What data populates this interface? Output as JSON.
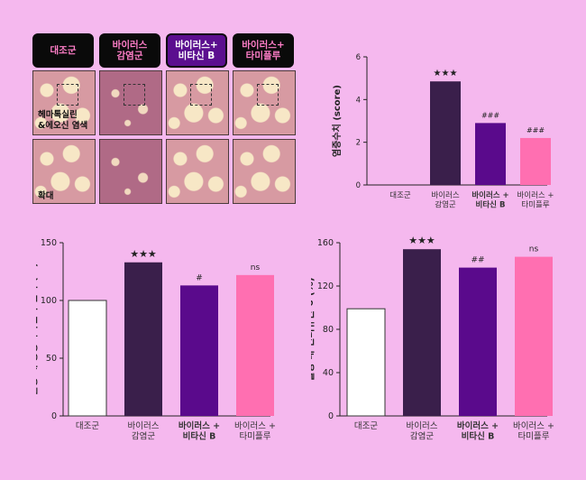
{
  "tabs": [
    {
      "label": "대조군",
      "bg": "#0a0a0a",
      "fg": "#ff7ec8"
    },
    {
      "label": "바이러스\n감염군",
      "bg": "#0a0a0a",
      "fg": "#ff7ec8"
    },
    {
      "label": "바이러스+\n비타신 B",
      "bg": "#5b0e8f",
      "fg": "#ffffff"
    },
    {
      "label": "바이러스+\n타미플루",
      "bg": "#0a0a0a",
      "fg": "#ff7ec8"
    }
  ],
  "histology": {
    "row1_label": "헤마톡실린\n&에오신 염색",
    "row2_label": "확대"
  },
  "colors": {
    "control": "#ffffff",
    "virus": "#3a1f4b",
    "vitacin": "#5a0a8c",
    "tamiflu": "#ff6fb1"
  },
  "chart_data": [
    {
      "type": "bar",
      "categories": [
        "대조군",
        "바이러스\n감염군",
        "바이러스 +\n비타신 B",
        "바이러스 +\n타미플루"
      ],
      "values": [
        0,
        4.85,
        2.9,
        2.2
      ],
      "annotations": [
        "",
        "★★★",
        "###",
        "###"
      ],
      "xlabel": "",
      "ylabel": "염증수치 (score)",
      "ylim": [
        0,
        6
      ],
      "yticks": [
        0,
        2,
        4,
        6
      ],
      "grid": false
    },
    {
      "type": "bar",
      "categories": [
        "대조군",
        "바이러스\n감염군",
        "바이러스 +\n비타신 B",
        "바이러스 +\n타미플루"
      ],
      "values": [
        100,
        133,
        113,
        122
      ],
      "annotations": [
        "",
        "★★★",
        "#",
        "ns"
      ],
      "xlabel": "",
      "ylabel": "혈청 내 종양괴사인자 알파 (%)",
      "ylim": [
        0,
        150
      ],
      "yticks": [
        0,
        50,
        100,
        150
      ],
      "grid": false
    },
    {
      "type": "bar",
      "categories": [
        "대조군",
        "바이러스\n감염군",
        "바이러스 +\n비타신 B",
        "바이러스 +\n타미플루"
      ],
      "values": [
        99,
        154,
        137,
        147
      ],
      "annotations": [
        "",
        "★★★",
        "##",
        "ns"
      ],
      "xlabel": "",
      "ylabel": "혈청 내 인터류킨-6 (%)",
      "ylim": [
        0,
        160
      ],
      "yticks": [
        0,
        40,
        80,
        120,
        160
      ],
      "grid": false
    }
  ]
}
